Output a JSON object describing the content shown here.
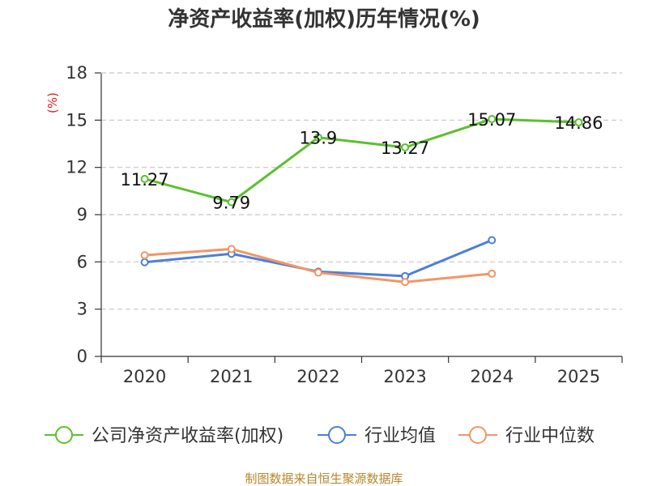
{
  "chart_data": {
    "type": "line",
    "title": "净资产收益率(加权)历年情况(%)",
    "xlabel": "",
    "ylabel": "(%)",
    "categories": [
      "2020",
      "2021",
      "2022",
      "2023",
      "2024",
      "2025"
    ],
    "ylim": [
      0,
      18
    ],
    "yticks": [
      0,
      3,
      6,
      9,
      12,
      15,
      18
    ],
    "grid": true,
    "legend_position": "bottom",
    "series": [
      {
        "name": "公司净资产收益率(加权)",
        "color": "#5ac12e",
        "values": [
          11.27,
          9.79,
          13.9,
          13.27,
          15.07,
          14.86
        ],
        "data_labels": [
          "11.27",
          "9.79",
          "13.9",
          "13.27",
          "15.07",
          "14.86"
        ]
      },
      {
        "name": "行业均值",
        "color": "#4a7fdc",
        "values": [
          5.98,
          6.52,
          5.38,
          5.1,
          7.38,
          null
        ]
      },
      {
        "name": "行业中位数",
        "color": "#f39566",
        "values": [
          6.42,
          6.82,
          5.32,
          4.72,
          5.25,
          null
        ]
      }
    ]
  },
  "footer": {
    "source": "制图数据来自恒生聚源数据库"
  }
}
